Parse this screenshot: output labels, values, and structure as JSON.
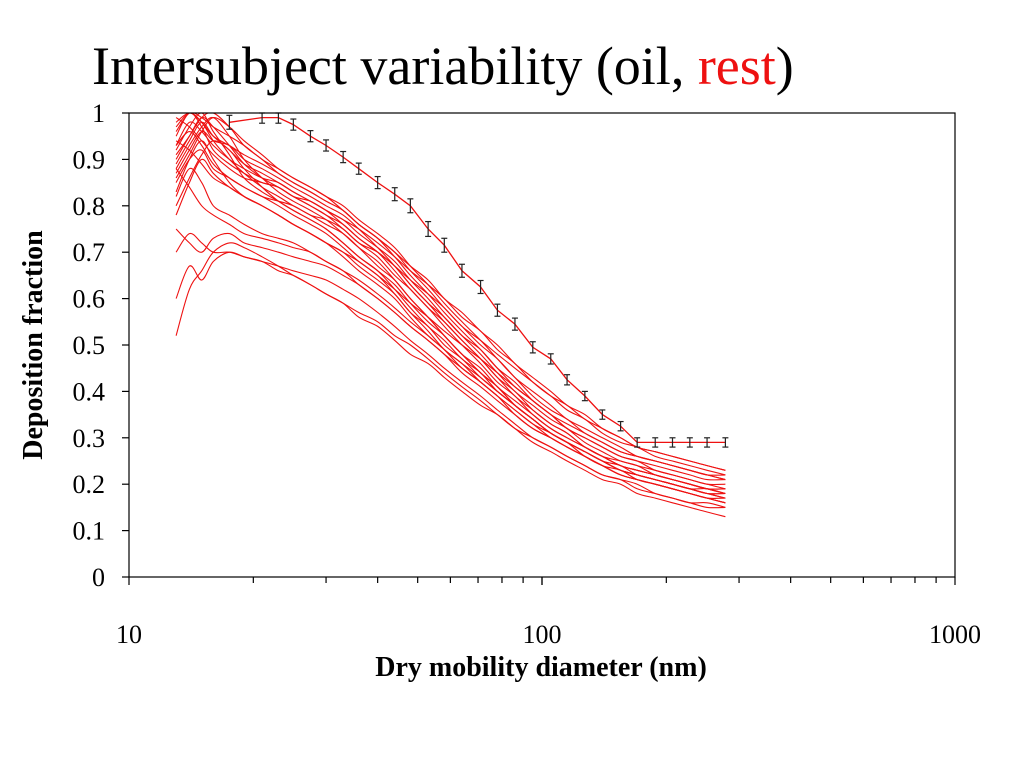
{
  "slide": {
    "title_prefix": "Intersubject variability (oil, ",
    "title_accent": "rest",
    "title_suffix": ")"
  },
  "colors": {
    "series": "#ee1111",
    "errorbar": "#222222",
    "axis": "#000000",
    "accent": "#ee1111"
  },
  "chart_data": {
    "type": "line",
    "title": "Intersubject variability (oil, rest)",
    "xlabel": "Dry mobility diameter (nm)",
    "ylabel": "Deposition fraction",
    "xscale": "log",
    "xlim": [
      10,
      1000
    ],
    "ylim": [
      0,
      1
    ],
    "x_ticks": [
      10,
      100,
      1000
    ],
    "y_ticks": [
      0,
      0.1,
      0.2,
      0.3,
      0.4,
      0.5,
      0.6,
      0.7,
      0.8,
      0.9,
      1
    ],
    "y_tick_labels": [
      "0",
      "0.1",
      "0.2",
      "0.3",
      "0.4",
      "0.5",
      "0.6",
      "0.7",
      "0.8",
      "0.9",
      "1"
    ],
    "x_tick_labels": [
      "10",
      "100",
      "1000"
    ],
    "grid": false,
    "legend": "none",
    "x": [
      13,
      14,
      15,
      16,
      17.5,
      19,
      21,
      23,
      25,
      27.5,
      30,
      33,
      36,
      40,
      44,
      48,
      53,
      58,
      64,
      71,
      78,
      86,
      95,
      105,
      115,
      127,
      140,
      155,
      170,
      188,
      207,
      228,
      251,
      278
    ],
    "series": [
      {
        "values": [
          0.87,
          0.92,
          0.96,
          0.94,
          0.93,
          0.9,
          0.88,
          0.86,
          0.84,
          0.82,
          0.8,
          0.78,
          0.75,
          0.71,
          0.67,
          0.63,
          0.59,
          0.55,
          0.51,
          0.47,
          0.43,
          0.39,
          0.36,
          0.33,
          0.31,
          0.28,
          0.26,
          0.25,
          0.24,
          0.23,
          0.22,
          0.21,
          0.2,
          0.2
        ]
      },
      {
        "values": [
          0.93,
          0.98,
          0.96,
          0.93,
          0.9,
          0.88,
          0.86,
          0.85,
          0.83,
          0.81,
          0.79,
          0.77,
          0.74,
          0.71,
          0.68,
          0.64,
          0.6,
          0.56,
          0.52,
          0.49,
          0.45,
          0.41,
          0.38,
          0.35,
          0.32,
          0.3,
          0.28,
          0.26,
          0.25,
          0.23,
          0.22,
          0.21,
          0.2,
          0.19
        ]
      },
      {
        "values": [
          0.95,
          1.0,
          0.97,
          0.92,
          0.89,
          0.87,
          0.85,
          0.84,
          0.82,
          0.8,
          0.78,
          0.76,
          0.73,
          0.7,
          0.67,
          0.63,
          0.59,
          0.56,
          0.52,
          0.48,
          0.44,
          0.4,
          0.37,
          0.34,
          0.32,
          0.29,
          0.27,
          0.25,
          0.24,
          0.22,
          0.21,
          0.2,
          0.19,
          0.18
        ]
      },
      {
        "values": [
          0.9,
          0.95,
          0.99,
          0.97,
          0.93,
          0.89,
          0.86,
          0.84,
          0.82,
          0.8,
          0.78,
          0.75,
          0.72,
          0.69,
          0.65,
          0.62,
          0.58,
          0.55,
          0.51,
          0.47,
          0.43,
          0.4,
          0.36,
          0.33,
          0.31,
          0.28,
          0.26,
          0.24,
          0.23,
          0.22,
          0.21,
          0.2,
          0.19,
          0.18
        ]
      },
      {
        "values": [
          0.98,
          1.0,
          0.98,
          0.95,
          0.93,
          0.91,
          0.89,
          0.87,
          0.85,
          0.83,
          0.81,
          0.79,
          0.76,
          0.73,
          0.7,
          0.66,
          0.62,
          0.58,
          0.54,
          0.5,
          0.47,
          0.43,
          0.39,
          0.36,
          0.34,
          0.31,
          0.29,
          0.27,
          0.26,
          0.25,
          0.24,
          0.23,
          0.22,
          0.21
        ]
      },
      {
        "values": [
          0.86,
          0.91,
          0.96,
          0.99,
          0.97,
          0.94,
          0.91,
          0.88,
          0.86,
          0.84,
          0.82,
          0.79,
          0.76,
          0.73,
          0.69,
          0.65,
          0.61,
          0.57,
          0.53,
          0.49,
          0.45,
          0.42,
          0.38,
          0.35,
          0.32,
          0.3,
          0.28,
          0.26,
          0.25,
          0.24,
          0.23,
          0.22,
          0.21,
          0.21
        ]
      },
      {
        "values": [
          0.92,
          0.97,
          1.0,
          0.96,
          0.91,
          0.86,
          0.83,
          0.81,
          0.79,
          0.77,
          0.75,
          0.72,
          0.69,
          0.66,
          0.62,
          0.58,
          0.54,
          0.51,
          0.47,
          0.44,
          0.4,
          0.37,
          0.34,
          0.31,
          0.29,
          0.27,
          0.25,
          0.23,
          0.22,
          0.21,
          0.2,
          0.19,
          0.18,
          0.17
        ]
      },
      {
        "values": [
          0.88,
          0.93,
          0.97,
          0.99,
          0.95,
          0.9,
          0.86,
          0.83,
          0.81,
          0.79,
          0.77,
          0.74,
          0.71,
          0.68,
          0.64,
          0.6,
          0.56,
          0.52,
          0.48,
          0.44,
          0.41,
          0.37,
          0.34,
          0.31,
          0.29,
          0.27,
          0.25,
          0.23,
          0.22,
          0.21,
          0.2,
          0.19,
          0.18,
          0.18
        ]
      },
      {
        "values": [
          0.96,
          1.0,
          0.99,
          0.97,
          0.95,
          0.93,
          0.9,
          0.88,
          0.86,
          0.84,
          0.82,
          0.8,
          0.77,
          0.74,
          0.71,
          0.67,
          0.63,
          0.59,
          0.55,
          0.51,
          0.47,
          0.43,
          0.4,
          0.37,
          0.34,
          0.32,
          0.3,
          0.28,
          0.26,
          0.25,
          0.24,
          0.23,
          0.22,
          0.22
        ]
      },
      {
        "values": [
          0.89,
          0.94,
          0.98,
          0.95,
          0.92,
          0.89,
          0.87,
          0.85,
          0.83,
          0.81,
          0.79,
          0.76,
          0.73,
          0.7,
          0.66,
          0.62,
          0.58,
          0.54,
          0.5,
          0.46,
          0.42,
          0.39,
          0.35,
          0.32,
          0.3,
          0.28,
          0.26,
          0.24,
          0.23,
          0.22,
          0.21,
          0.2,
          0.19,
          0.19
        ]
      },
      {
        "values": [
          0.83,
          0.9,
          0.94,
          0.9,
          0.85,
          0.82,
          0.8,
          0.78,
          0.76,
          0.74,
          0.72,
          0.69,
          0.66,
          0.63,
          0.6,
          0.56,
          0.52,
          0.49,
          0.45,
          0.42,
          0.39,
          0.36,
          0.33,
          0.3,
          0.28,
          0.26,
          0.24,
          0.22,
          0.21,
          0.2,
          0.19,
          0.18,
          0.17,
          0.16
        ]
      },
      {
        "values": [
          0.78,
          0.85,
          0.9,
          0.87,
          0.84,
          0.82,
          0.8,
          0.78,
          0.76,
          0.74,
          0.72,
          0.7,
          0.67,
          0.64,
          0.61,
          0.57,
          0.54,
          0.5,
          0.47,
          0.43,
          0.4,
          0.37,
          0.34,
          0.31,
          0.29,
          0.26,
          0.24,
          0.23,
          0.21,
          0.2,
          0.19,
          0.18,
          0.17,
          0.17
        ]
      },
      {
        "values": [
          0.82,
          0.88,
          0.85,
          0.8,
          0.78,
          0.76,
          0.74,
          0.73,
          0.72,
          0.7,
          0.68,
          0.66,
          0.63,
          0.6,
          0.57,
          0.54,
          0.51,
          0.48,
          0.44,
          0.41,
          0.38,
          0.35,
          0.32,
          0.3,
          0.28,
          0.26,
          0.24,
          0.22,
          0.21,
          0.2,
          0.19,
          0.18,
          0.17,
          0.16
        ]
      },
      {
        "values": [
          0.75,
          0.72,
          0.7,
          0.73,
          0.74,
          0.72,
          0.71,
          0.7,
          0.69,
          0.68,
          0.67,
          0.65,
          0.63,
          0.6,
          0.57,
          0.54,
          0.51,
          0.48,
          0.45,
          0.42,
          0.39,
          0.36,
          0.33,
          0.31,
          0.29,
          0.27,
          0.25,
          0.23,
          0.22,
          0.21,
          0.2,
          0.19,
          0.18,
          0.18
        ]
      },
      {
        "values": [
          0.6,
          0.67,
          0.64,
          0.68,
          0.7,
          0.69,
          0.68,
          0.67,
          0.66,
          0.65,
          0.64,
          0.62,
          0.6,
          0.57,
          0.54,
          0.51,
          0.48,
          0.45,
          0.42,
          0.39,
          0.36,
          0.33,
          0.3,
          0.28,
          0.26,
          0.24,
          0.22,
          0.21,
          0.2,
          0.18,
          0.17,
          0.16,
          0.15,
          0.15
        ]
      },
      {
        "values": [
          0.52,
          0.62,
          0.66,
          0.7,
          0.72,
          0.71,
          0.69,
          0.67,
          0.65,
          0.63,
          0.61,
          0.59,
          0.56,
          0.54,
          0.51,
          0.48,
          0.46,
          0.43,
          0.4,
          0.37,
          0.35,
          0.32,
          0.29,
          0.27,
          0.25,
          0.23,
          0.21,
          0.2,
          0.18,
          0.17,
          0.16,
          0.15,
          0.14,
          0.13
        ]
      },
      {
        "values": [
          0.7,
          0.74,
          0.72,
          0.7,
          0.7,
          0.69,
          0.68,
          0.66,
          0.65,
          0.63,
          0.61,
          0.59,
          0.57,
          0.55,
          0.52,
          0.5,
          0.47,
          0.44,
          0.41,
          0.38,
          0.35,
          0.32,
          0.3,
          0.28,
          0.26,
          0.24,
          0.22,
          0.21,
          0.19,
          0.18,
          0.17,
          0.16,
          0.16,
          0.15
        ]
      },
      {
        "values": [
          0.88,
          0.84,
          0.8,
          0.78,
          0.76,
          0.74,
          0.73,
          0.72,
          0.71,
          0.7,
          0.68,
          0.66,
          0.64,
          0.61,
          0.58,
          0.55,
          0.52,
          0.49,
          0.46,
          0.43,
          0.4,
          0.37,
          0.34,
          0.31,
          0.29,
          0.27,
          0.25,
          0.24,
          0.22,
          0.21,
          0.2,
          0.19,
          0.19,
          0.18
        ]
      },
      {
        "values": [
          0.93,
          0.96,
          0.93,
          0.89,
          0.86,
          0.84,
          0.82,
          0.81,
          0.8,
          0.78,
          0.77,
          0.75,
          0.72,
          0.7,
          0.67,
          0.64,
          0.61,
          0.58,
          0.54,
          0.51,
          0.48,
          0.45,
          0.42,
          0.39,
          0.36,
          0.34,
          0.31,
          0.29,
          0.28,
          0.26,
          0.25,
          0.24,
          0.23,
          0.22
        ]
      },
      {
        "values": [
          0.99,
          0.97,
          0.94,
          0.91,
          0.88,
          0.86,
          0.85,
          0.84,
          0.82,
          0.81,
          0.79,
          0.77,
          0.75,
          0.72,
          0.69,
          0.66,
          0.63,
          0.6,
          0.56,
          0.53,
          0.49,
          0.46,
          0.42,
          0.39,
          0.37,
          0.34,
          0.32,
          0.3,
          0.28,
          0.27,
          0.26,
          0.25,
          0.24,
          0.23
        ]
      },
      {
        "values": [
          0.85,
          0.9,
          0.92,
          0.88,
          0.86,
          0.84,
          0.82,
          0.8,
          0.78,
          0.76,
          0.74,
          0.71,
          0.68,
          0.65,
          0.61,
          0.57,
          0.53,
          0.49,
          0.46,
          0.42,
          0.39,
          0.35,
          0.32,
          0.3,
          0.28,
          0.26,
          0.24,
          0.22,
          0.21,
          0.2,
          0.19,
          0.18,
          0.17,
          0.16
        ]
      },
      {
        "values": [
          0.97,
          1.0,
          0.98,
          0.94,
          0.9,
          0.87,
          0.84,
          0.82,
          0.8,
          0.78,
          0.76,
          0.74,
          0.71,
          0.67,
          0.64,
          0.6,
          0.56,
          0.52,
          0.48,
          0.44,
          0.41,
          0.37,
          0.34,
          0.31,
          0.29,
          0.27,
          0.25,
          0.23,
          0.22,
          0.21,
          0.2,
          0.19,
          0.18,
          0.17
        ]
      },
      {
        "values": [
          0.91,
          0.95,
          0.99,
          1.0,
          0.97,
          0.93,
          0.9,
          0.87,
          0.85,
          0.83,
          0.81,
          0.79,
          0.76,
          0.73,
          0.7,
          0.67,
          0.64,
          0.6,
          0.57,
          0.53,
          0.5,
          0.46,
          0.43,
          0.4,
          0.37,
          0.35,
          0.32,
          0.3,
          0.28,
          0.27,
          0.26,
          0.25,
          0.24,
          0.23
        ]
      },
      {
        "values": [
          0.8,
          0.86,
          0.91,
          0.94,
          0.92,
          0.88,
          0.84,
          0.81,
          0.79,
          0.77,
          0.75,
          0.72,
          0.69,
          0.66,
          0.63,
          0.59,
          0.55,
          0.52,
          0.48,
          0.45,
          0.41,
          0.38,
          0.35,
          0.32,
          0.3,
          0.28,
          0.26,
          0.24,
          0.23,
          0.22,
          0.21,
          0.2,
          0.19,
          0.19
        ]
      },
      {
        "values": [
          0.94,
          0.92,
          0.89,
          0.86,
          0.84,
          0.82,
          0.8,
          0.78,
          0.76,
          0.74,
          0.72,
          0.7,
          0.68,
          0.65,
          0.62,
          0.59,
          0.56,
          0.53,
          0.5,
          0.47,
          0.44,
          0.41,
          0.38,
          0.35,
          0.33,
          0.31,
          0.29,
          0.27,
          0.26,
          0.25,
          0.24,
          0.23,
          0.22,
          0.21
        ]
      }
    ],
    "mean_series": {
      "x": [
        17.5,
        21,
        23,
        25,
        27.5,
        30,
        33,
        36,
        40,
        44,
        48,
        53,
        58,
        64,
        71,
        78,
        86,
        95,
        105,
        115,
        127,
        140,
        155,
        170,
        188,
        207,
        228,
        251,
        278
      ],
      "values": [
        0.98,
        0.99,
        0.99,
        0.975,
        0.95,
        0.93,
        0.905,
        0.88,
        0.85,
        0.825,
        0.8,
        0.75,
        0.715,
        0.66,
        0.625,
        0.575,
        0.545,
        0.495,
        0.47,
        0.425,
        0.39,
        0.35,
        0.325,
        0.29,
        0.29,
        0.29,
        0.29,
        0.29,
        0.29
      ],
      "error": [
        0.015,
        0.012,
        0.012,
        0.012,
        0.012,
        0.012,
        0.012,
        0.012,
        0.013,
        0.014,
        0.015,
        0.016,
        0.015,
        0.014,
        0.014,
        0.013,
        0.013,
        0.012,
        0.011,
        0.011,
        0.01,
        0.01,
        0.01,
        0.01,
        0.01,
        0.01,
        0.01,
        0.01,
        0.01
      ]
    }
  }
}
